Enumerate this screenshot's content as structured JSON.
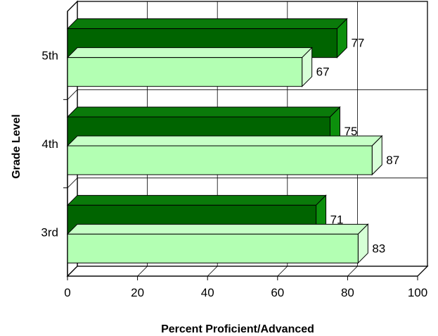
{
  "chart_data": {
    "type": "bar",
    "orientation": "horizontal",
    "style": "3d",
    "categories": [
      "3rd",
      "4th",
      "5th"
    ],
    "series": [
      {
        "values": [
          71,
          75,
          77
        ],
        "color": "#006400"
      },
      {
        "values": [
          83,
          87,
          67
        ],
        "color": "#b3ffb3"
      }
    ],
    "xlabel": "Percent Proficient/Advanced",
    "ylabel": "Grade Level",
    "xlim": [
      0,
      100
    ],
    "xticks": [
      0,
      20,
      40,
      60,
      80,
      100
    ],
    "grid": true,
    "legend": "none"
  }
}
